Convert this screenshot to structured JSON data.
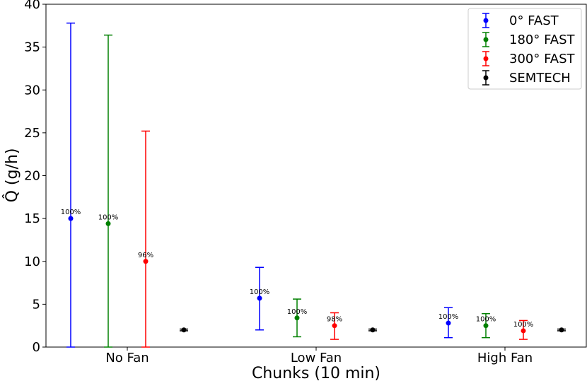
{
  "chart_data": {
    "type": "scatter",
    "xlabel": "Chunks (10 min)",
    "ylabel": "Q̂ (g/h)",
    "ylim": [
      0,
      40
    ],
    "yticks": [
      0,
      5,
      10,
      15,
      20,
      25,
      30,
      35,
      40
    ],
    "categories": [
      "No Fan",
      "Low Fan",
      "High Fan"
    ],
    "grid": false,
    "legend_position": "top-right",
    "series": [
      {
        "name": "0° FAST",
        "color": "#0000ff",
        "values": [
          15.0,
          5.7,
          2.8
        ],
        "err_low": [
          0,
          2.0,
          1.1
        ],
        "err_high": [
          37.8,
          9.3,
          4.6
        ],
        "labels": [
          "100%",
          "100%",
          "100%"
        ]
      },
      {
        "name": "180° FAST",
        "color": "#008000",
        "values": [
          14.4,
          3.4,
          2.5
        ],
        "err_low": [
          0,
          1.2,
          1.1
        ],
        "err_high": [
          36.4,
          5.6,
          3.9
        ],
        "labels": [
          "100%",
          "100%",
          "100%"
        ]
      },
      {
        "name": "300° FAST",
        "color": "#ff0000",
        "values": [
          10.0,
          2.5,
          1.9
        ],
        "err_low": [
          0,
          0.9,
          0.9
        ],
        "err_high": [
          25.2,
          4.0,
          3.1
        ],
        "labels": [
          "96%",
          "98%",
          "100%"
        ]
      },
      {
        "name": "SEMTECH",
        "color": "#000000",
        "values": [
          2.0,
          2.0,
          2.0
        ],
        "err_low": [
          1.9,
          1.9,
          1.9
        ],
        "err_high": [
          2.1,
          2.1,
          2.1
        ],
        "labels": [
          "",
          "",
          ""
        ]
      }
    ]
  }
}
